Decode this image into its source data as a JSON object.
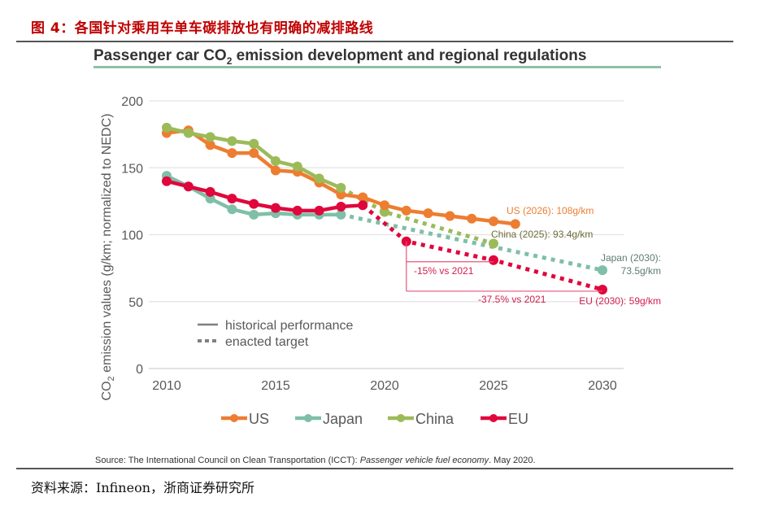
{
  "figure": {
    "caption": "图 4：各国针对乘用车单车碳排放也有明确的减排路线",
    "source_note_prefix": "Source: The International Council on Clean Transportation (ICCT): ",
    "source_note_italic": "Passenger vehicle fuel economy",
    "source_note_suffix": ". May 2020.",
    "data_source": "资料来源：Infineon，浙商证券研究所"
  },
  "chart_data": {
    "type": "line",
    "title": "Passenger car CO2 emission development and regional regulations",
    "title_main": "Passenger car CO",
    "title_sub": "2",
    "title_rest": " emission development and regional regulations",
    "xlabel": "",
    "ylabel": "CO2 emission values (g/km; normalized to NEDC)",
    "ylabel_prefix": "CO",
    "ylabel_sub": "2",
    "ylabel_rest": " emission values (g/km; normalized to NEDC)",
    "xlim": [
      2010,
      2030
    ],
    "ylim": [
      0,
      200
    ],
    "x_ticks": [
      2010,
      2015,
      2020,
      2025,
      2030
    ],
    "x_tick_labels": [
      "2010",
      "2015",
      "2020",
      "2025",
      "2030"
    ],
    "y_ticks": [
      0,
      50,
      100,
      150,
      200
    ],
    "y_tick_labels": [
      "0",
      "50",
      "100",
      "150",
      "200"
    ],
    "grid": "horizontal",
    "legend_position": "bottom",
    "legend": [
      "US",
      "Japan",
      "China",
      "EU"
    ],
    "line_style_legend": [
      {
        "style": "solid",
        "label": "historical performance"
      },
      {
        "style": "dotted",
        "label": "enacted target"
      }
    ],
    "series": [
      {
        "name": "US",
        "color": "#ed7d31",
        "historical": {
          "x": [
            2010,
            2011,
            2012,
            2013,
            2014,
            2015,
            2016,
            2017,
            2018,
            2019,
            2020,
            2021,
            2022,
            2023,
            2024,
            2025,
            2026
          ],
          "y": [
            176,
            178,
            167,
            161,
            161,
            148,
            147,
            139,
            130,
            128,
            122,
            118,
            116,
            114,
            112,
            110,
            108
          ]
        },
        "target": null
      },
      {
        "name": "Japan",
        "color": "#7fbfa8",
        "historical": {
          "x": [
            2010,
            2011,
            2012,
            2013,
            2014,
            2015,
            2016,
            2017,
            2018
          ],
          "y": [
            144,
            136,
            127,
            119,
            115,
            116,
            115,
            115,
            115
          ]
        },
        "target": {
          "x": [
            2018,
            2030
          ],
          "y": [
            115,
            73.5
          ],
          "markers": [
            2030
          ]
        }
      },
      {
        "name": "China",
        "color": "#9bbb59",
        "historical": {
          "x": [
            2010,
            2011,
            2012,
            2013,
            2014,
            2015,
            2016,
            2017,
            2018
          ],
          "y": [
            180,
            176,
            173,
            170,
            168,
            155,
            151,
            142,
            135
          ]
        },
        "target": {
          "x": [
            2018,
            2020,
            2025
          ],
          "y": [
            135,
            117,
            93.4
          ],
          "markers": [
            2020,
            2025
          ]
        }
      },
      {
        "name": "EU",
        "color": "#e0073c",
        "historical": {
          "x": [
            2010,
            2011,
            2012,
            2013,
            2014,
            2015,
            2016,
            2017,
            2018,
            2019
          ],
          "y": [
            140,
            136,
            132,
            127,
            123,
            120,
            118,
            118,
            121,
            122
          ]
        },
        "target": {
          "x": [
            2019,
            2021,
            2025,
            2030
          ],
          "y": [
            122,
            95,
            81,
            59
          ],
          "markers": [
            2021,
            2025,
            2030
          ]
        }
      }
    ],
    "annotations": [
      {
        "text": "US (2026): 108g/km",
        "series": "US",
        "x": 2026,
        "y": 108
      },
      {
        "text": "China (2025): 93.4g/km",
        "series": "China",
        "x": 2025,
        "y": 93.4
      },
      {
        "text_line1": "Japan (2030):",
        "text_line2": "73.5g/km",
        "series": "Japan",
        "x": 2030,
        "y": 73.5
      },
      {
        "text": "EU (2030): 59g/km",
        "series": "EU",
        "x": 2030,
        "y": 59
      },
      {
        "text": "-15% vs 2021",
        "series": "EU",
        "from_x": 2021,
        "to_x": 2025,
        "y": 81
      },
      {
        "text": "-37.5% vs 2021",
        "series": "EU",
        "from_x": 2021,
        "to_x": 2030,
        "y": 59
      }
    ]
  }
}
